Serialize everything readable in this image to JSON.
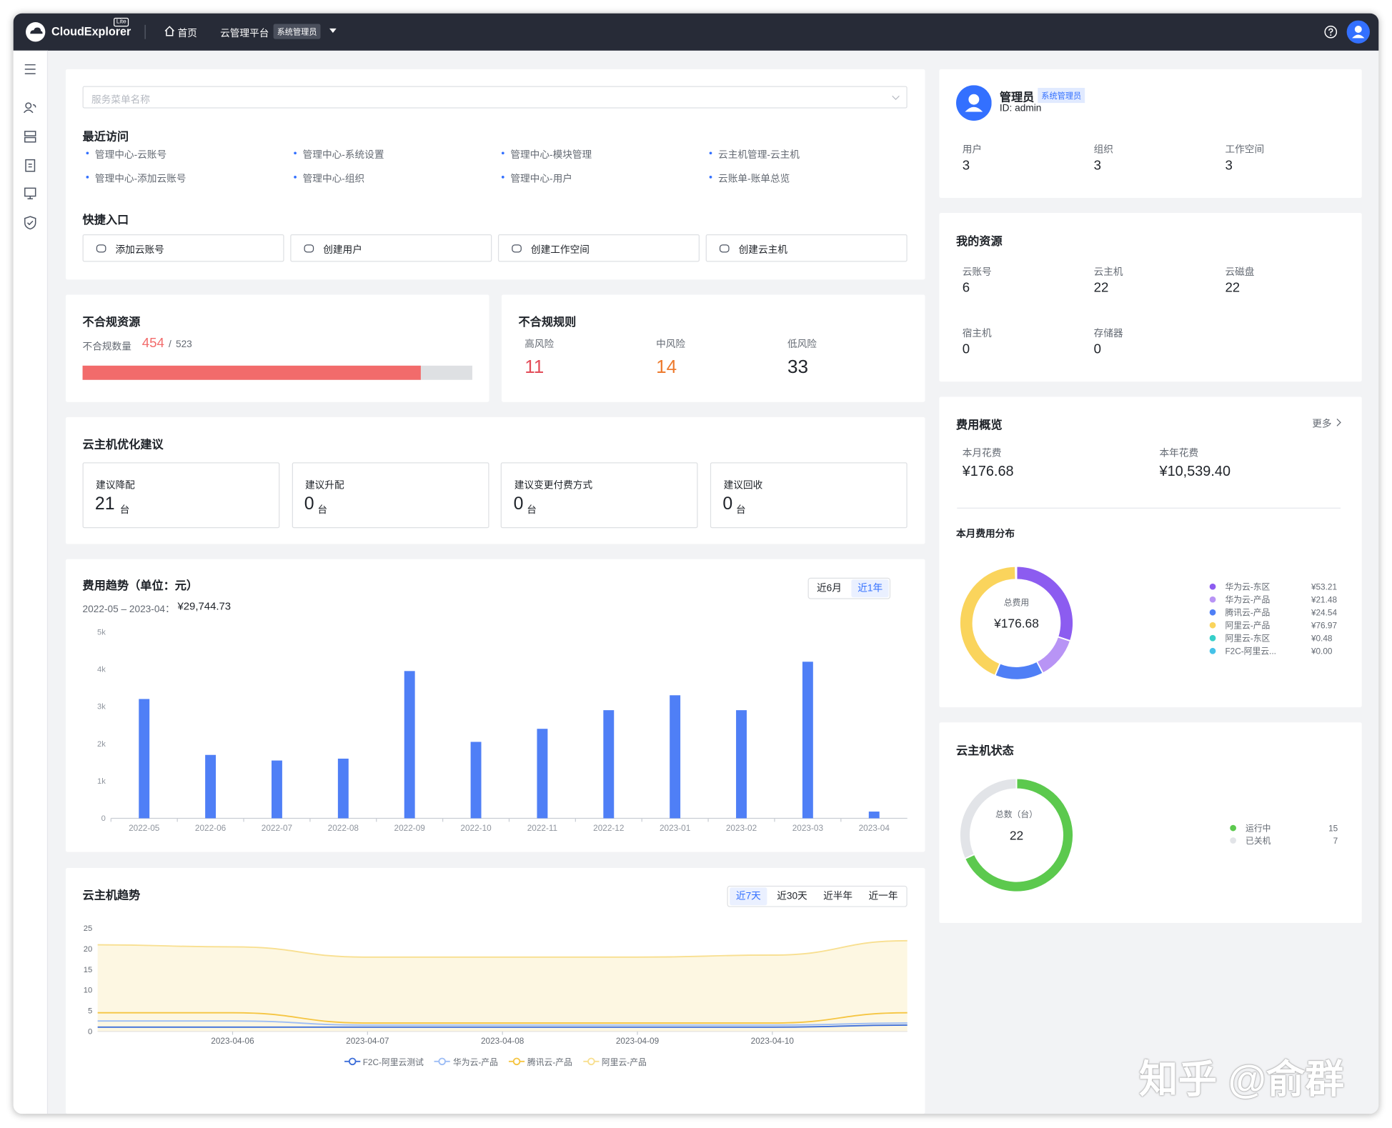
{
  "header": {
    "brand": "CloudExplorer",
    "edition": "Lite",
    "home": "首页",
    "platform": "云管理平台",
    "role": "系统管理员"
  },
  "search": {
    "placeholder": "服务菜单名称"
  },
  "recent": {
    "title": "最近访问",
    "items": [
      "管理中心-云账号",
      "管理中心-系统设置",
      "管理中心-模块管理",
      "云主机管理-云主机",
      "管理中心-添加云账号",
      "管理中心-组织",
      "管理中心-用户",
      "云账单-账单总览"
    ]
  },
  "shortcuts": {
    "title": "快捷入口",
    "items": [
      "添加云账号",
      "创建用户",
      "创建工作空间",
      "创建云主机"
    ]
  },
  "noncompliant_resources": {
    "title": "不合规资源",
    "label": "不合规数量",
    "count": 454,
    "separator": "/",
    "total": 523,
    "color": "#f26b6b"
  },
  "noncompliant_rules": {
    "title": "不合规规则",
    "items": [
      {
        "label": "高风险",
        "value": 11,
        "color": "#e34d59"
      },
      {
        "label": "中风险",
        "value": 14,
        "color": "#ed7b2f"
      },
      {
        "label": "低风险",
        "value": 33,
        "color": "#1f2329"
      }
    ]
  },
  "optimization": {
    "title": "云主机优化建议",
    "unit": "台",
    "items": [
      {
        "label": "建议降配",
        "value": 21
      },
      {
        "label": "建议升配",
        "value": 0
      },
      {
        "label": "建议变更付费方式",
        "value": 0
      },
      {
        "label": "建议回收",
        "value": 0
      }
    ]
  },
  "profile": {
    "name": "管理员",
    "role": "系统管理员",
    "id": "ID: admin",
    "stats": [
      {
        "label": "用户",
        "value": 3
      },
      {
        "label": "组织",
        "value": 3
      },
      {
        "label": "工作空间",
        "value": 3
      }
    ]
  },
  "resources": {
    "title": "我的资源",
    "items": [
      {
        "label": "云账号",
        "value": 6
      },
      {
        "label": "云主机",
        "value": 22
      },
      {
        "label": "云磁盘",
        "value": 22
      },
      {
        "label": "宿主机",
        "value": 0
      },
      {
        "label": "存储器",
        "value": 0
      }
    ]
  },
  "cost_overview": {
    "title": "费用概览",
    "more": "更多",
    "items": [
      {
        "label": "本月花费",
        "value": "¥176.68"
      },
      {
        "label": "本年花费",
        "value": "¥10,539.40"
      }
    ]
  },
  "watermark": "知乎 @俞群",
  "chart_data": [
    {
      "type": "bar",
      "title": "费用趋势（单位：元）",
      "subtitle": "2022-05 – 2023-04：",
      "total": "¥29,744.73",
      "toggles": [
        "近6月",
        "近1年"
      ],
      "active_toggle": 1,
      "categories": [
        "2022-05",
        "2022-06",
        "2022-07",
        "2022-08",
        "2022-09",
        "2022-10",
        "2022-11",
        "2022-12",
        "2023-01",
        "2023-02",
        "2023-03",
        "2023-04"
      ],
      "values": [
        3200,
        1700,
        1550,
        1600,
        3950,
        2050,
        2400,
        2900,
        3300,
        2900,
        4200,
        180
      ],
      "color": "#4f7ff6",
      "ylim": [
        0,
        5000
      ],
      "yticks": [
        0,
        {
          "value": 1000,
          "label": "1k"
        },
        {
          "value": 2000,
          "label": "2k"
        },
        {
          "value": 3000,
          "label": "3k"
        },
        {
          "value": 4000,
          "label": "4k"
        },
        {
          "value": 5000,
          "label": "5k"
        }
      ],
      "grid": false
    },
    {
      "type": "pie",
      "title": "本月费用分布",
      "center_label": "总费用",
      "center_value": "¥176.68",
      "categories": [
        "华为云-东区",
        "华为云-产品",
        "腾讯云-产品",
        "阿里云-产品",
        "阿里云-东区",
        "F2C-阿里云..."
      ],
      "values": [
        53.21,
        21.48,
        24.54,
        76.97,
        0.48,
        0
      ],
      "value_labels": [
        "¥53.21",
        "¥21.48",
        "¥24.54",
        "¥76.97",
        "¥0.48",
        "¥0.00"
      ],
      "colors": [
        "#8c5cf0",
        "#b894f5",
        "#4f7ff6",
        "#fad45c",
        "#36cfc9",
        "#45c2e8"
      ]
    },
    {
      "type": "pie",
      "title": "云主机状态",
      "center_label": "总数（台）",
      "center_value": "22",
      "categories": [
        "运行中",
        "已关机"
      ],
      "values": [
        15,
        7
      ],
      "colors": [
        "#5cc94e",
        "#e2e4e8"
      ]
    },
    {
      "type": "line",
      "title": "云主机趋势",
      "toggles": [
        "近7天",
        "近30天",
        "近半年",
        "近一年"
      ],
      "active_toggle": 0,
      "categories": [
        null,
        "2023-04-06",
        "2023-04-07",
        "2023-04-08",
        "2023-04-09",
        "2023-04-10",
        null
      ],
      "series": [
        {
          "name": "F2C-阿里云测试",
          "color": "#3e6fd9",
          "values": [
            1,
            1,
            1,
            1,
            1,
            1,
            1.5
          ]
        },
        {
          "name": "华为云-产品",
          "color": "#9dbdf5",
          "values": [
            2.5,
            2.5,
            1.5,
            1.5,
            1.5,
            1.5,
            2
          ]
        },
        {
          "name": "腾讯云-产品",
          "color": "#f5c542",
          "values": [
            4.5,
            4.5,
            2,
            2,
            2,
            2,
            4.5
          ]
        },
        {
          "name": "阿里云-产品",
          "color": "#f8df90",
          "area_color": "#fdf7e2",
          "values": [
            21,
            20.5,
            18,
            18,
            18,
            18.5,
            22
          ]
        }
      ],
      "ylim": [
        0,
        25
      ],
      "yticks": [
        0,
        5,
        10,
        15,
        20,
        25
      ]
    }
  ]
}
